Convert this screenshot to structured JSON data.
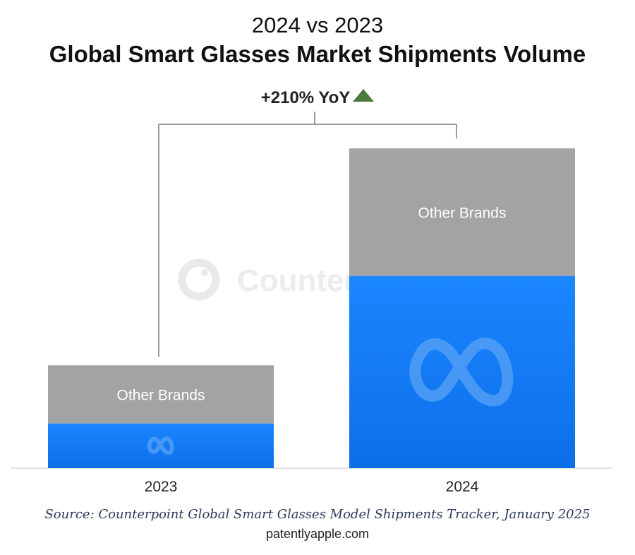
{
  "title": {
    "line1": "2024 vs 2023",
    "line2": "Global Smart Glasses Market Shipments Volume"
  },
  "annotation": {
    "text": "+210% YoY",
    "arrow_color": "#4a7a3c"
  },
  "watermark": {
    "text": "Counterpoint"
  },
  "chart_data": {
    "type": "bar",
    "stacked": true,
    "categories": [
      "2023",
      "2024"
    ],
    "series": [
      {
        "name": "Meta",
        "color": "#1877f2",
        "values": [
          20,
          86
        ],
        "icon": "meta-logo-icon"
      },
      {
        "name": "Other Brands",
        "color": "#a3a3a3",
        "values": [
          26,
          57
        ]
      }
    ],
    "segment_labels": {
      "Other Brands": [
        "Other Brands",
        "Other Brands"
      ]
    },
    "growth_annotation": "+210% YoY",
    "ylim": [
      0,
      150
    ],
    "ylabel": "",
    "xlabel": "",
    "gridlines": false
  },
  "footer": {
    "source": "Source: Counterpoint Global Smart Glasses Model Shipments Tracker, January 2025",
    "credit": "patentlyapple.com"
  }
}
